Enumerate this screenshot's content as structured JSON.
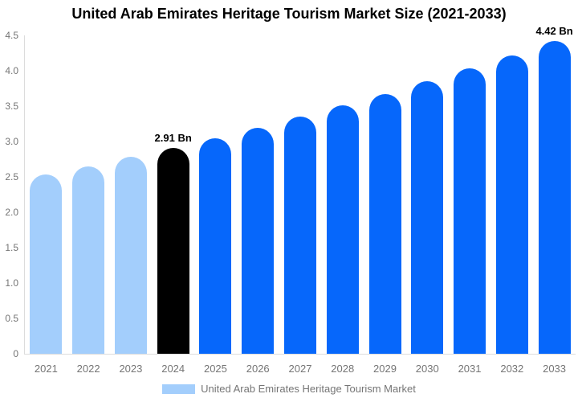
{
  "title": "United Arab Emirates Heritage Tourism Market Size (2021-2033)",
  "legend": {
    "label": "United Arab Emirates Heritage Tourism Market",
    "swatch_color": "#A3CEFC"
  },
  "colors": {
    "historical_bar": "#A3CEFC",
    "highlight_bar": "#000000",
    "forecast_bar": "#0667FB",
    "axis_text": "#757575",
    "axis_line": "#DCDCDC",
    "title_text": "#000000",
    "background": "#FFFFFF"
  },
  "chart_data": {
    "type": "bar",
    "title": "United Arab Emirates Heritage Tourism Market Size (2021-2033)",
    "unit": "Bn",
    "categories": [
      "2021",
      "2022",
      "2023",
      "2024",
      "2025",
      "2026",
      "2027",
      "2028",
      "2029",
      "2030",
      "2031",
      "2032",
      "2033"
    ],
    "values": [
      2.53,
      2.65,
      2.78,
      2.91,
      3.05,
      3.19,
      3.35,
      3.51,
      3.67,
      3.85,
      4.03,
      4.22,
      4.42
    ],
    "bar_roles": [
      "historical",
      "historical",
      "historical",
      "highlight",
      "forecast",
      "forecast",
      "forecast",
      "forecast",
      "forecast",
      "forecast",
      "forecast",
      "forecast",
      "forecast"
    ],
    "annotations": [
      {
        "index": 3,
        "label": "2.91 Bn"
      },
      {
        "index": 12,
        "label": "4.42 Bn"
      }
    ],
    "xlabel": "",
    "ylabel": "",
    "ylim": [
      0,
      4.5
    ],
    "y_ticks": [
      "4.5",
      "4.0",
      "3.5",
      "3.0",
      "2.5",
      "2.0",
      "1.5",
      "1.0",
      "0.5",
      "0"
    ],
    "grid": false,
    "legend_position": "bottom"
  }
}
